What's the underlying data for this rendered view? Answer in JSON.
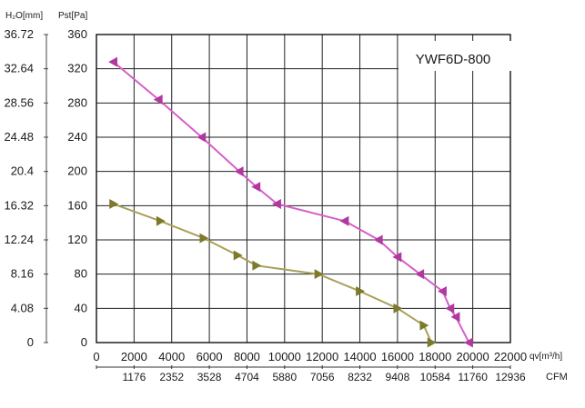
{
  "chart_data": {
    "type": "line",
    "title": "YWF6D-800",
    "y_left_outer": {
      "label": "H₂O[mm]",
      "ticks": [
        "36.72",
        "32.64",
        "28.56",
        "24.48",
        "20.4",
        "16.32",
        "12.24",
        "8.16",
        "4.08",
        "0"
      ]
    },
    "y_left_inner": {
      "label": "Pst[Pa]",
      "ticks": [
        360,
        320,
        280,
        240,
        200,
        160,
        120,
        80,
        40,
        0
      ],
      "ylim": [
        0,
        360
      ]
    },
    "x_primary": {
      "label": "qv[m³/h]",
      "ticks": [
        0,
        2000,
        4000,
        6000,
        8000,
        10000,
        12000,
        14000,
        16000,
        18000,
        20000,
        22000
      ],
      "xlim": [
        0,
        22000
      ]
    },
    "x_secondary": {
      "label": "CFM",
      "ticks": [
        "1176",
        "2352",
        "3528",
        "4704",
        "5880",
        "7056",
        "8232",
        "9408",
        "10584",
        "11760",
        "12936"
      ]
    },
    "grid": true,
    "series": [
      {
        "color": "#d65fc8",
        "marker_color": "#b1389f",
        "marker": "triangle-left",
        "x": [
          900,
          3300,
          5600,
          7600,
          8500,
          9600,
          13200,
          15000,
          16000,
          17200,
          18400,
          18800,
          19100,
          19800
        ],
        "y": [
          328,
          284,
          240,
          200,
          182,
          162,
          142,
          120,
          100,
          80,
          60,
          40,
          30,
          0
        ]
      },
      {
        "color": "#a9a05a",
        "marker_color": "#7d7a2c",
        "marker": "triangle-right",
        "x": [
          900,
          3400,
          5700,
          7500,
          8500,
          11800,
          14000,
          16000,
          17400,
          17800
        ],
        "y": [
          162,
          142,
          122,
          102,
          90,
          80,
          60,
          40,
          20,
          0
        ]
      }
    ]
  }
}
